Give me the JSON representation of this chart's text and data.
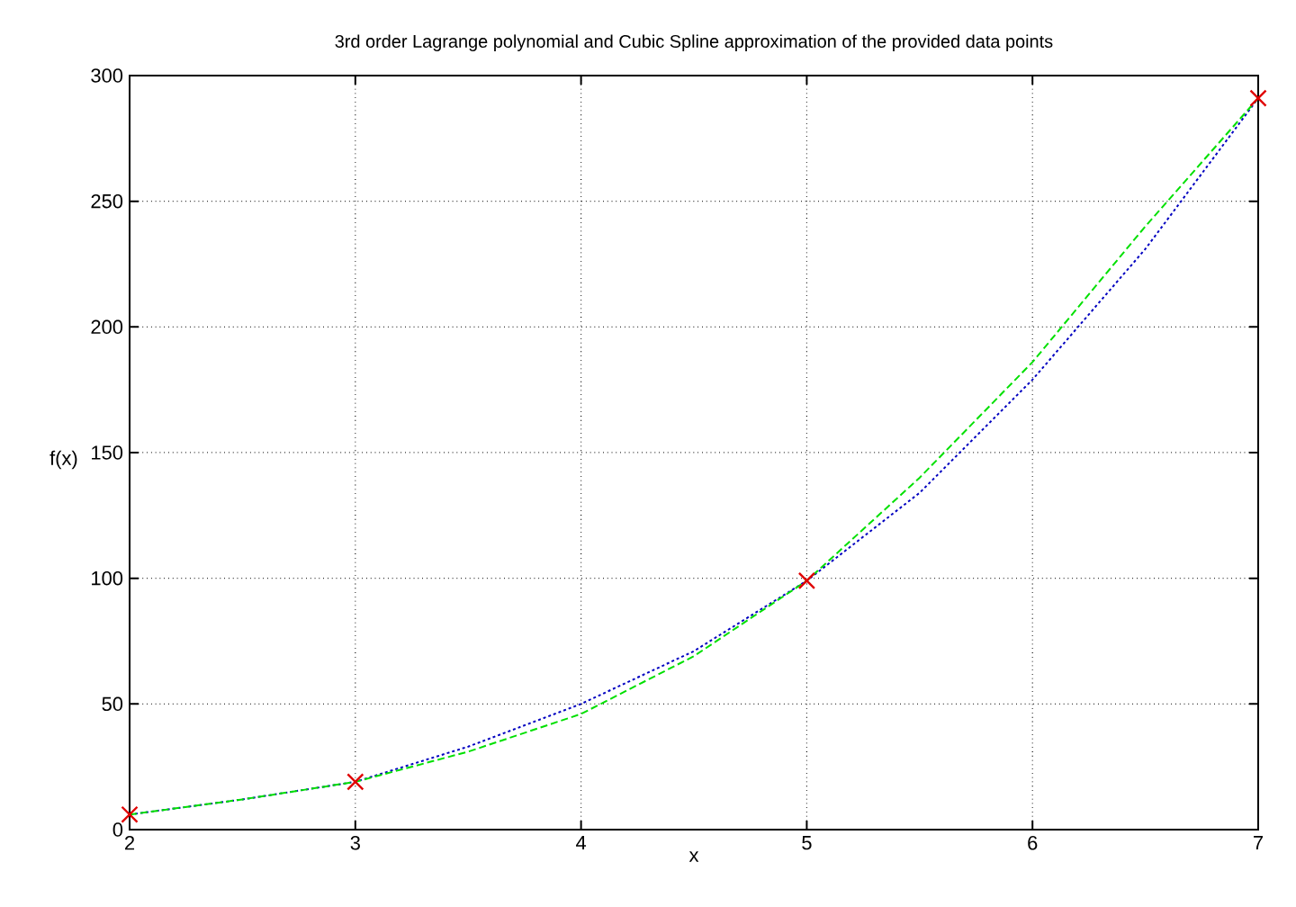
{
  "chart_data": {
    "type": "line",
    "title": "3rd order Lagrange polynomial and Cubic Spline approximation of the provided data points",
    "xlabel": "x",
    "ylabel": "f(x)",
    "xlim": [
      2,
      7
    ],
    "ylim": [
      0,
      300
    ],
    "xticks": [
      2,
      3,
      4,
      5,
      6,
      7
    ],
    "yticks": [
      0,
      50,
      100,
      150,
      200,
      250,
      300
    ],
    "grid": true,
    "series": [
      {
        "line_style": "dotted",
        "color": "#0000c0",
        "x": [
          2,
          2.5,
          3,
          3.5,
          4,
          4.5,
          5,
          5.5,
          6,
          6.5,
          7
        ],
        "values": [
          6,
          12,
          19,
          33,
          50,
          71,
          99,
          134,
          179,
          231,
          291
        ]
      },
      {
        "line_style": "dashed",
        "color": "#00e000",
        "x": [
          2,
          2.5,
          3,
          3.5,
          4,
          4.5,
          5,
          5.5,
          6,
          6.5,
          7
        ],
        "values": [
          6,
          12,
          19,
          31,
          46,
          69,
          99,
          140,
          186,
          240,
          291
        ]
      },
      {
        "type": "scatter",
        "marker": "cross",
        "color": "#e00000",
        "x": [
          2,
          3,
          5,
          7
        ],
        "values": [
          6,
          19,
          99,
          291
        ]
      }
    ]
  }
}
